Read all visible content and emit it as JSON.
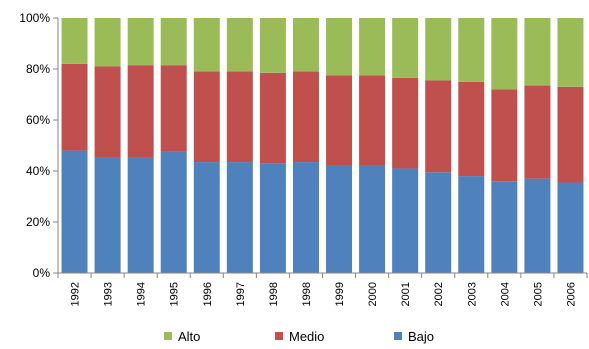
{
  "chart_data": {
    "type": "bar",
    "stacked": true,
    "title": "",
    "xlabel": "",
    "ylabel": "",
    "ylim": [
      0,
      100
    ],
    "y_ticks": [
      "0%",
      "20%",
      "40%",
      "60%",
      "80%",
      "100%"
    ],
    "grid": false,
    "legend_position": "bottom",
    "categories": [
      "1992",
      "1993",
      "1994",
      "1995",
      "1996",
      "1997",
      "1998",
      "1998",
      "1999",
      "2000",
      "2001",
      "2002",
      "2003",
      "2004",
      "2005",
      "2006"
    ],
    "series": [
      {
        "name": "Bajo",
        "color": "#4f81bd",
        "values": [
          48,
          45.5,
          45.5,
          47.5,
          43.5,
          43.5,
          43,
          43.5,
          42,
          42,
          41,
          39.5,
          38,
          36,
          37,
          35.5
        ]
      },
      {
        "name": "Medio",
        "color": "#c0504d",
        "values": [
          34,
          35.5,
          36,
          34,
          35.5,
          35.5,
          35.5,
          35.5,
          35.5,
          35.5,
          35.5,
          36,
          37,
          36,
          36.5,
          37.5
        ]
      },
      {
        "name": "Alto",
        "color": "#9bbb59",
        "values": [
          18,
          19,
          18.5,
          18.5,
          21,
          21,
          21.5,
          21,
          22.5,
          22.5,
          23.5,
          24.5,
          25,
          28,
          26.5,
          27
        ]
      }
    ],
    "legend": [
      "Alto",
      "Medio",
      "Bajo"
    ]
  }
}
